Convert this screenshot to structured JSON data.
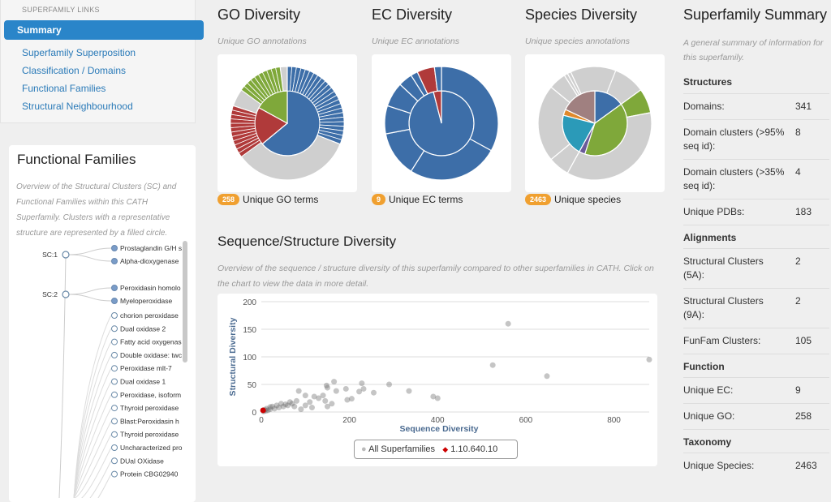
{
  "sidebar": {
    "header": "SUPERFAMILY LINKS",
    "active": "Summary",
    "links": [
      "Superfamily Superposition",
      "Classification / Domains",
      "Functional Families",
      "Structural Neighbourhood"
    ]
  },
  "functional_families": {
    "title": "Functional Families",
    "description": "Overview of the Structural Clusters (SC) and Functional Families within this CATH Superfamily. Clusters with a representative structure are represented by a filled circle.",
    "clusters": [
      {
        "label": "SC:1",
        "families": [
          "Prostaglandin G/H s",
          "Alpha-dioxygenase"
        ]
      },
      {
        "label": "SC:2",
        "families": [
          "Peroxidasin homolo",
          "Myeloperoxidase"
        ]
      }
    ],
    "unclustered": [
      "chorion peroxidase",
      "Dual oxidase 2",
      "Fatty acid oxygenas",
      "Double oxidase: twc",
      "Peroxidase mlt-7",
      "Dual oxidase 1",
      "Peroxidase, isoform",
      "Thyroid peroxidase",
      "Blast:Peroxidasin h",
      "Thyroid peroxidase",
      "Uncharacterized pro",
      "DUal OXidase",
      "Protein CBG02940"
    ]
  },
  "go": {
    "title": "GO Diversity",
    "subtitle": "Unique GO annotations",
    "count": "258",
    "count_label": "Unique GO terms"
  },
  "ec": {
    "title": "EC Diversity",
    "subtitle": "Unique EC annotations",
    "count": "9",
    "count_label": "Unique EC terms"
  },
  "species": {
    "title": "Species Diversity",
    "subtitle": "Unique species annotations",
    "count": "2463",
    "count_label": "Unique species"
  },
  "colors": {
    "blue": "#3d6ea8",
    "red": "#b03a3a",
    "green": "#7fa83a",
    "gray": "#cfcfcf",
    "teal": "#2b9ab8",
    "orange": "#e0892b",
    "purple": "#6a5a9a",
    "mauve": "#a08080",
    "accent": "#2a85c9",
    "badge": "#f0a030"
  },
  "sunbursts": {
    "go": {
      "inner": [
        [
          "blue",
          0.64
        ],
        [
          "red",
          0.19
        ],
        [
          "green",
          0.17
        ]
      ],
      "outer": [
        [
          "blue",
          0.31,
          24
        ],
        [
          "gray",
          0.34,
          1
        ],
        [
          "red",
          0.15,
          12
        ],
        [
          "gray",
          0.05,
          1
        ],
        [
          "green",
          0.13,
          10
        ],
        [
          "gray",
          0.02,
          1
        ]
      ]
    },
    "ec": {
      "inner": [
        [
          "blue",
          0.96
        ],
        [
          "red",
          0.04
        ]
      ],
      "outer": [
        [
          "blue",
          0.33,
          1
        ],
        [
          "blue",
          0.26,
          1
        ],
        [
          "blue",
          0.13,
          1
        ],
        [
          "blue",
          0.08,
          1
        ],
        [
          "blue",
          0.07,
          1
        ],
        [
          "blue",
          0.04,
          1
        ],
        [
          "blue",
          0.02,
          1
        ],
        [
          "red",
          0.05,
          1
        ],
        [
          "blue",
          0.02,
          1
        ]
      ]
    },
    "species": {
      "inner": [
        [
          "blue",
          0.15
        ],
        [
          "green",
          0.4
        ],
        [
          "purple",
          0.03
        ],
        [
          "teal",
          0.21
        ],
        [
          "orange",
          0.03
        ],
        [
          "mauve",
          0.18
        ]
      ],
      "outer": [
        [
          "gray",
          0.15,
          1
        ],
        [
          "green",
          0.07,
          1
        ],
        [
          "gray",
          0.36,
          1
        ],
        [
          "gray",
          0.06,
          1
        ],
        [
          "gray",
          0.22,
          1
        ],
        [
          "gray",
          0.05,
          1
        ],
        [
          "gray",
          0.01,
          1
        ],
        [
          "gray",
          0.01,
          1
        ],
        [
          "gray",
          0.13,
          1
        ]
      ]
    }
  },
  "sequence_structure": {
    "title": "Sequence/Structure Diversity",
    "description": "Overview of the sequence / structure diversity of this superfamily compared to other superfamilies in CATH. Click on the chart to view the data in more detail."
  },
  "chart_data": {
    "type": "scatter",
    "xlabel": "Sequence Diversity",
    "ylabel": "Structural Diversity",
    "xlim": [
      0,
      880
    ],
    "ylim": [
      0,
      200
    ],
    "xticks": [
      "0",
      "200",
      "400",
      "600",
      "800"
    ],
    "yticks": [
      "0",
      "50",
      "100",
      "150",
      "200"
    ],
    "grid": true,
    "legend_position": "bottom",
    "series": [
      {
        "name": "All Superfamilies",
        "color": "#999999",
        "points": [
          [
            880,
            95
          ],
          [
            560,
            160
          ],
          [
            525,
            85
          ],
          [
            648,
            65
          ],
          [
            290,
            50
          ],
          [
            335,
            38
          ],
          [
            390,
            28
          ],
          [
            400,
            25
          ],
          [
            255,
            35
          ],
          [
            232,
            42
          ],
          [
            228,
            52
          ],
          [
            222,
            37
          ],
          [
            165,
            55
          ],
          [
            148,
            48
          ],
          [
            170,
            38
          ],
          [
            192,
            42
          ],
          [
            195,
            22
          ],
          [
            205,
            24
          ],
          [
            150,
            44
          ],
          [
            140,
            30
          ],
          [
            145,
            20
          ],
          [
            160,
            15
          ],
          [
            150,
            10
          ],
          [
            120,
            28
          ],
          [
            100,
            30
          ],
          [
            85,
            38
          ],
          [
            110,
            18
          ],
          [
            80,
            20
          ],
          [
            70,
            15
          ],
          [
            60,
            12
          ],
          [
            50,
            10
          ],
          [
            40,
            8
          ],
          [
            30,
            6
          ],
          [
            20,
            5
          ],
          [
            15,
            3
          ],
          [
            10,
            2
          ],
          [
            5,
            1
          ],
          [
            25,
            10
          ],
          [
            35,
            12
          ],
          [
            45,
            15
          ],
          [
            55,
            14
          ],
          [
            65,
            18
          ],
          [
            75,
            10
          ],
          [
            90,
            5
          ],
          [
            115,
            8
          ],
          [
            130,
            25
          ],
          [
            100,
            12
          ],
          [
            12,
            6
          ],
          [
            20,
            9
          ],
          [
            8,
            4
          ]
        ]
      },
      {
        "name": "1.10.640.10",
        "color": "#cc0000",
        "points": [
          [
            4,
            3
          ]
        ]
      }
    ]
  },
  "summary": {
    "title": "Superfamily Summary",
    "description": "A general summary of information for this superfamily.",
    "sections": [
      {
        "name": "Structures",
        "rows": [
          [
            "Domains:",
            "341"
          ],
          [
            "Domain clusters (>95% seq id):",
            "8"
          ],
          [
            "Domain clusters (>35% seq id):",
            "4"
          ],
          [
            "Unique PDBs:",
            "183"
          ]
        ]
      },
      {
        "name": "Alignments",
        "rows": [
          [
            "Structural Clusters (5A):",
            "2"
          ],
          [
            "Structural Clusters (9A):",
            "2"
          ],
          [
            "FunFam Clusters:",
            "105"
          ]
        ]
      },
      {
        "name": "Function",
        "rows": [
          [
            "Unique EC:",
            "9"
          ],
          [
            "Unique GO:",
            "258"
          ]
        ]
      },
      {
        "name": "Taxonomy",
        "rows": [
          [
            "Unique Species:",
            "2463"
          ]
        ]
      }
    ]
  }
}
